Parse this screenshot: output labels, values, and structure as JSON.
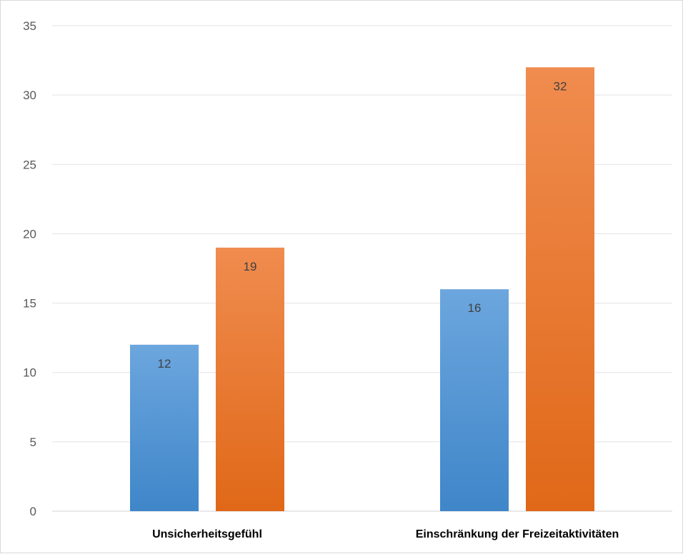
{
  "chart_data": {
    "type": "bar",
    "title": "",
    "xlabel": "",
    "ylabel": "",
    "categories": [
      "Unsicherheitsgefühl",
      "Einschränkung der Freizeitaktivitäten"
    ],
    "series": [
      {
        "values": [
          12,
          16
        ],
        "color": "#5b9bd5"
      },
      {
        "values": [
          19,
          32
        ],
        "color": "#ed7d31"
      }
    ],
    "ylim": [
      0,
      35
    ],
    "yticks": [
      0,
      5,
      10,
      15,
      20,
      25,
      30,
      35
    ],
    "grid": true,
    "legend": "none",
    "data_labels": true
  }
}
